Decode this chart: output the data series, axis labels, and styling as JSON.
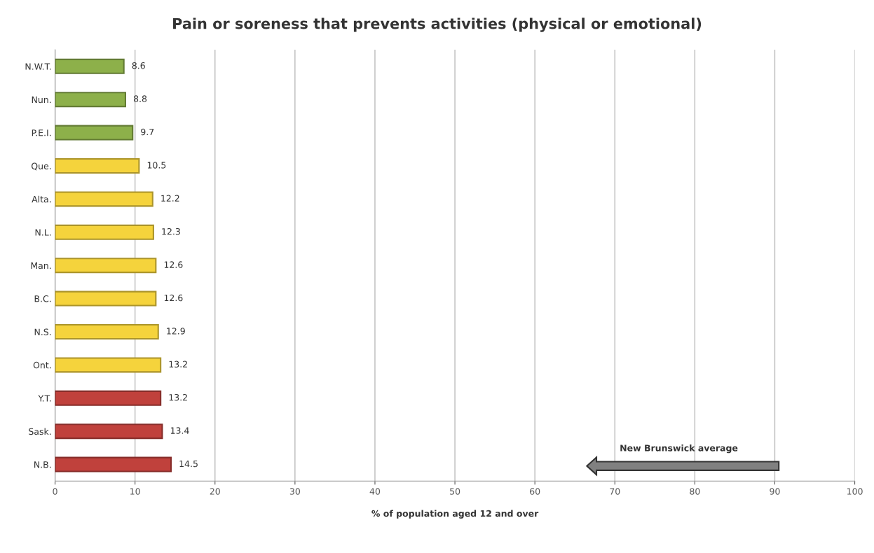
{
  "chart_data": {
    "type": "bar",
    "orientation": "horizontal",
    "title": "Pain or soreness that prevents activities (physical or emotional)",
    "xlabel": "% of population aged 12 and over",
    "categories": [
      "N.W.T.",
      "Nun.",
      "P.E.I.",
      "Que.",
      "Alta.",
      "N.L.",
      "Man.",
      "B.C.",
      "N.S.",
      "Ont.",
      "Y.T.",
      "Sask.",
      "N.B."
    ],
    "values": [
      8.6,
      8.8,
      9.7,
      10.5,
      12.2,
      12.3,
      12.6,
      12.6,
      12.9,
      13.2,
      13.2,
      13.4,
      14.5
    ],
    "colors": [
      "#8db04a",
      "#8db04a",
      "#8db04a",
      "#f5d33c",
      "#f5d33c",
      "#f5d33c",
      "#f5d33c",
      "#f5d33c",
      "#f5d33c",
      "#f5d33c",
      "#c0413c",
      "#c0413c",
      "#c0413c"
    ],
    "data_labels": true,
    "xlim": [
      0,
      100
    ],
    "xticks": [
      0,
      10,
      20,
      30,
      40,
      50,
      60,
      70,
      80,
      90,
      100
    ],
    "grid": "x",
    "annotations": [
      "New Brunswick average"
    ]
  }
}
